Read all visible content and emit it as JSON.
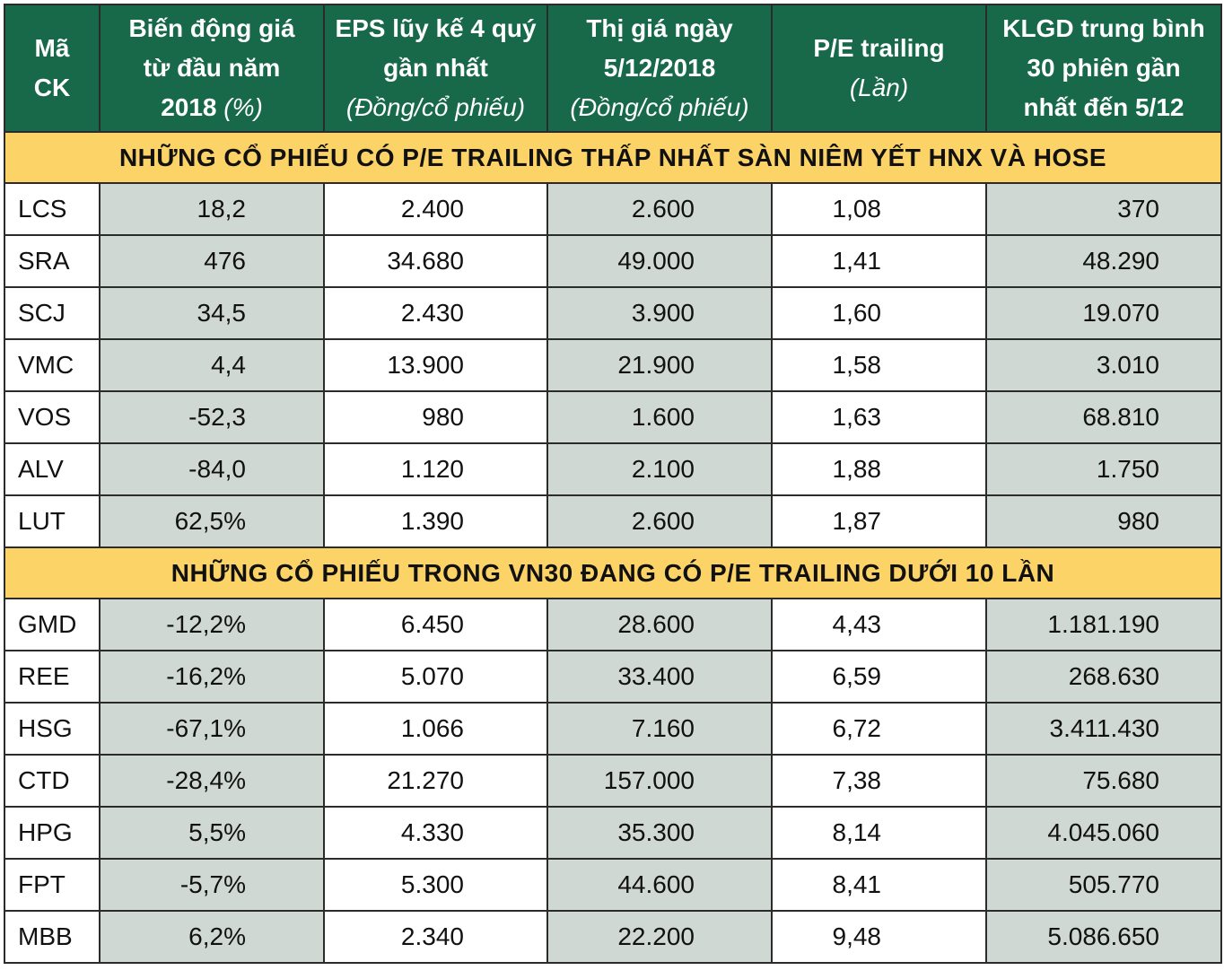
{
  "header": {
    "col0": [
      "Mã",
      "CK"
    ],
    "col1": [
      "Biến động giá",
      "từ đầu năm",
      "2018"
    ],
    "col1_unit": "(%)",
    "col2": [
      "EPS lũy kế 4 quý",
      "gần nhất"
    ],
    "col2_unit": "(Đồng/cổ phiếu)",
    "col3": [
      "Thị giá ngày",
      "5/12/2018"
    ],
    "col3_unit": "(Đồng/cổ phiếu)",
    "col4": [
      "P/E trailing"
    ],
    "col4_unit": "(Lần)",
    "col5": [
      "KLGD trung bình",
      "30 phiên gần",
      "nhất đến 5/12"
    ]
  },
  "section1": {
    "title": "NHỮNG CỔ PHIẾU CÓ P/E TRAILING THẤP NHẤT SÀN NIÊM YẾT HNX VÀ HOSE",
    "rows": [
      [
        "LCS",
        "18,2",
        "2.400",
        "2.600",
        "1,08",
        "370"
      ],
      [
        "SRA",
        "476",
        "34.680",
        "49.000",
        "1,41",
        "48.290"
      ],
      [
        "SCJ",
        "34,5",
        "2.430",
        "3.900",
        "1,60",
        "19.070"
      ],
      [
        "VMC",
        "4,4",
        "13.900",
        "21.900",
        "1,58",
        "3.010"
      ],
      [
        "VOS",
        "-52,3",
        "980",
        "1.600",
        "1,63",
        "68.810"
      ],
      [
        "ALV",
        "-84,0",
        "1.120",
        "2.100",
        "1,88",
        "1.750"
      ],
      [
        "LUT",
        "62,5%",
        "1.390",
        "2.600",
        "1,87",
        "980"
      ]
    ]
  },
  "section2": {
    "title": "NHỮNG CỔ PHIẾU TRONG VN30 ĐANG CÓ P/E TRAILING DƯỚI 10 LẦN",
    "rows": [
      [
        "GMD",
        "-12,2%",
        "6.450",
        "28.600",
        "4,43",
        "1.181.190"
      ],
      [
        "REE",
        "-16,2%",
        "5.070",
        "33.400",
        "6,59",
        "268.630"
      ],
      [
        "HSG",
        "-67,1%",
        "1.066",
        "7.160",
        "6,72",
        "3.411.430"
      ],
      [
        "CTD",
        "-28,4%",
        "21.270",
        "157.000",
        "7,38",
        "75.680"
      ],
      [
        "HPG",
        "5,5%",
        "4.330",
        "35.300",
        "8,14",
        "4.045.060"
      ],
      [
        "FPT",
        "-5,7%",
        "5.300",
        "44.600",
        "8,41",
        "505.770"
      ],
      [
        "MBB",
        "6,2%",
        "2.340",
        "22.200",
        "9,48",
        "5.086.650"
      ]
    ]
  }
}
